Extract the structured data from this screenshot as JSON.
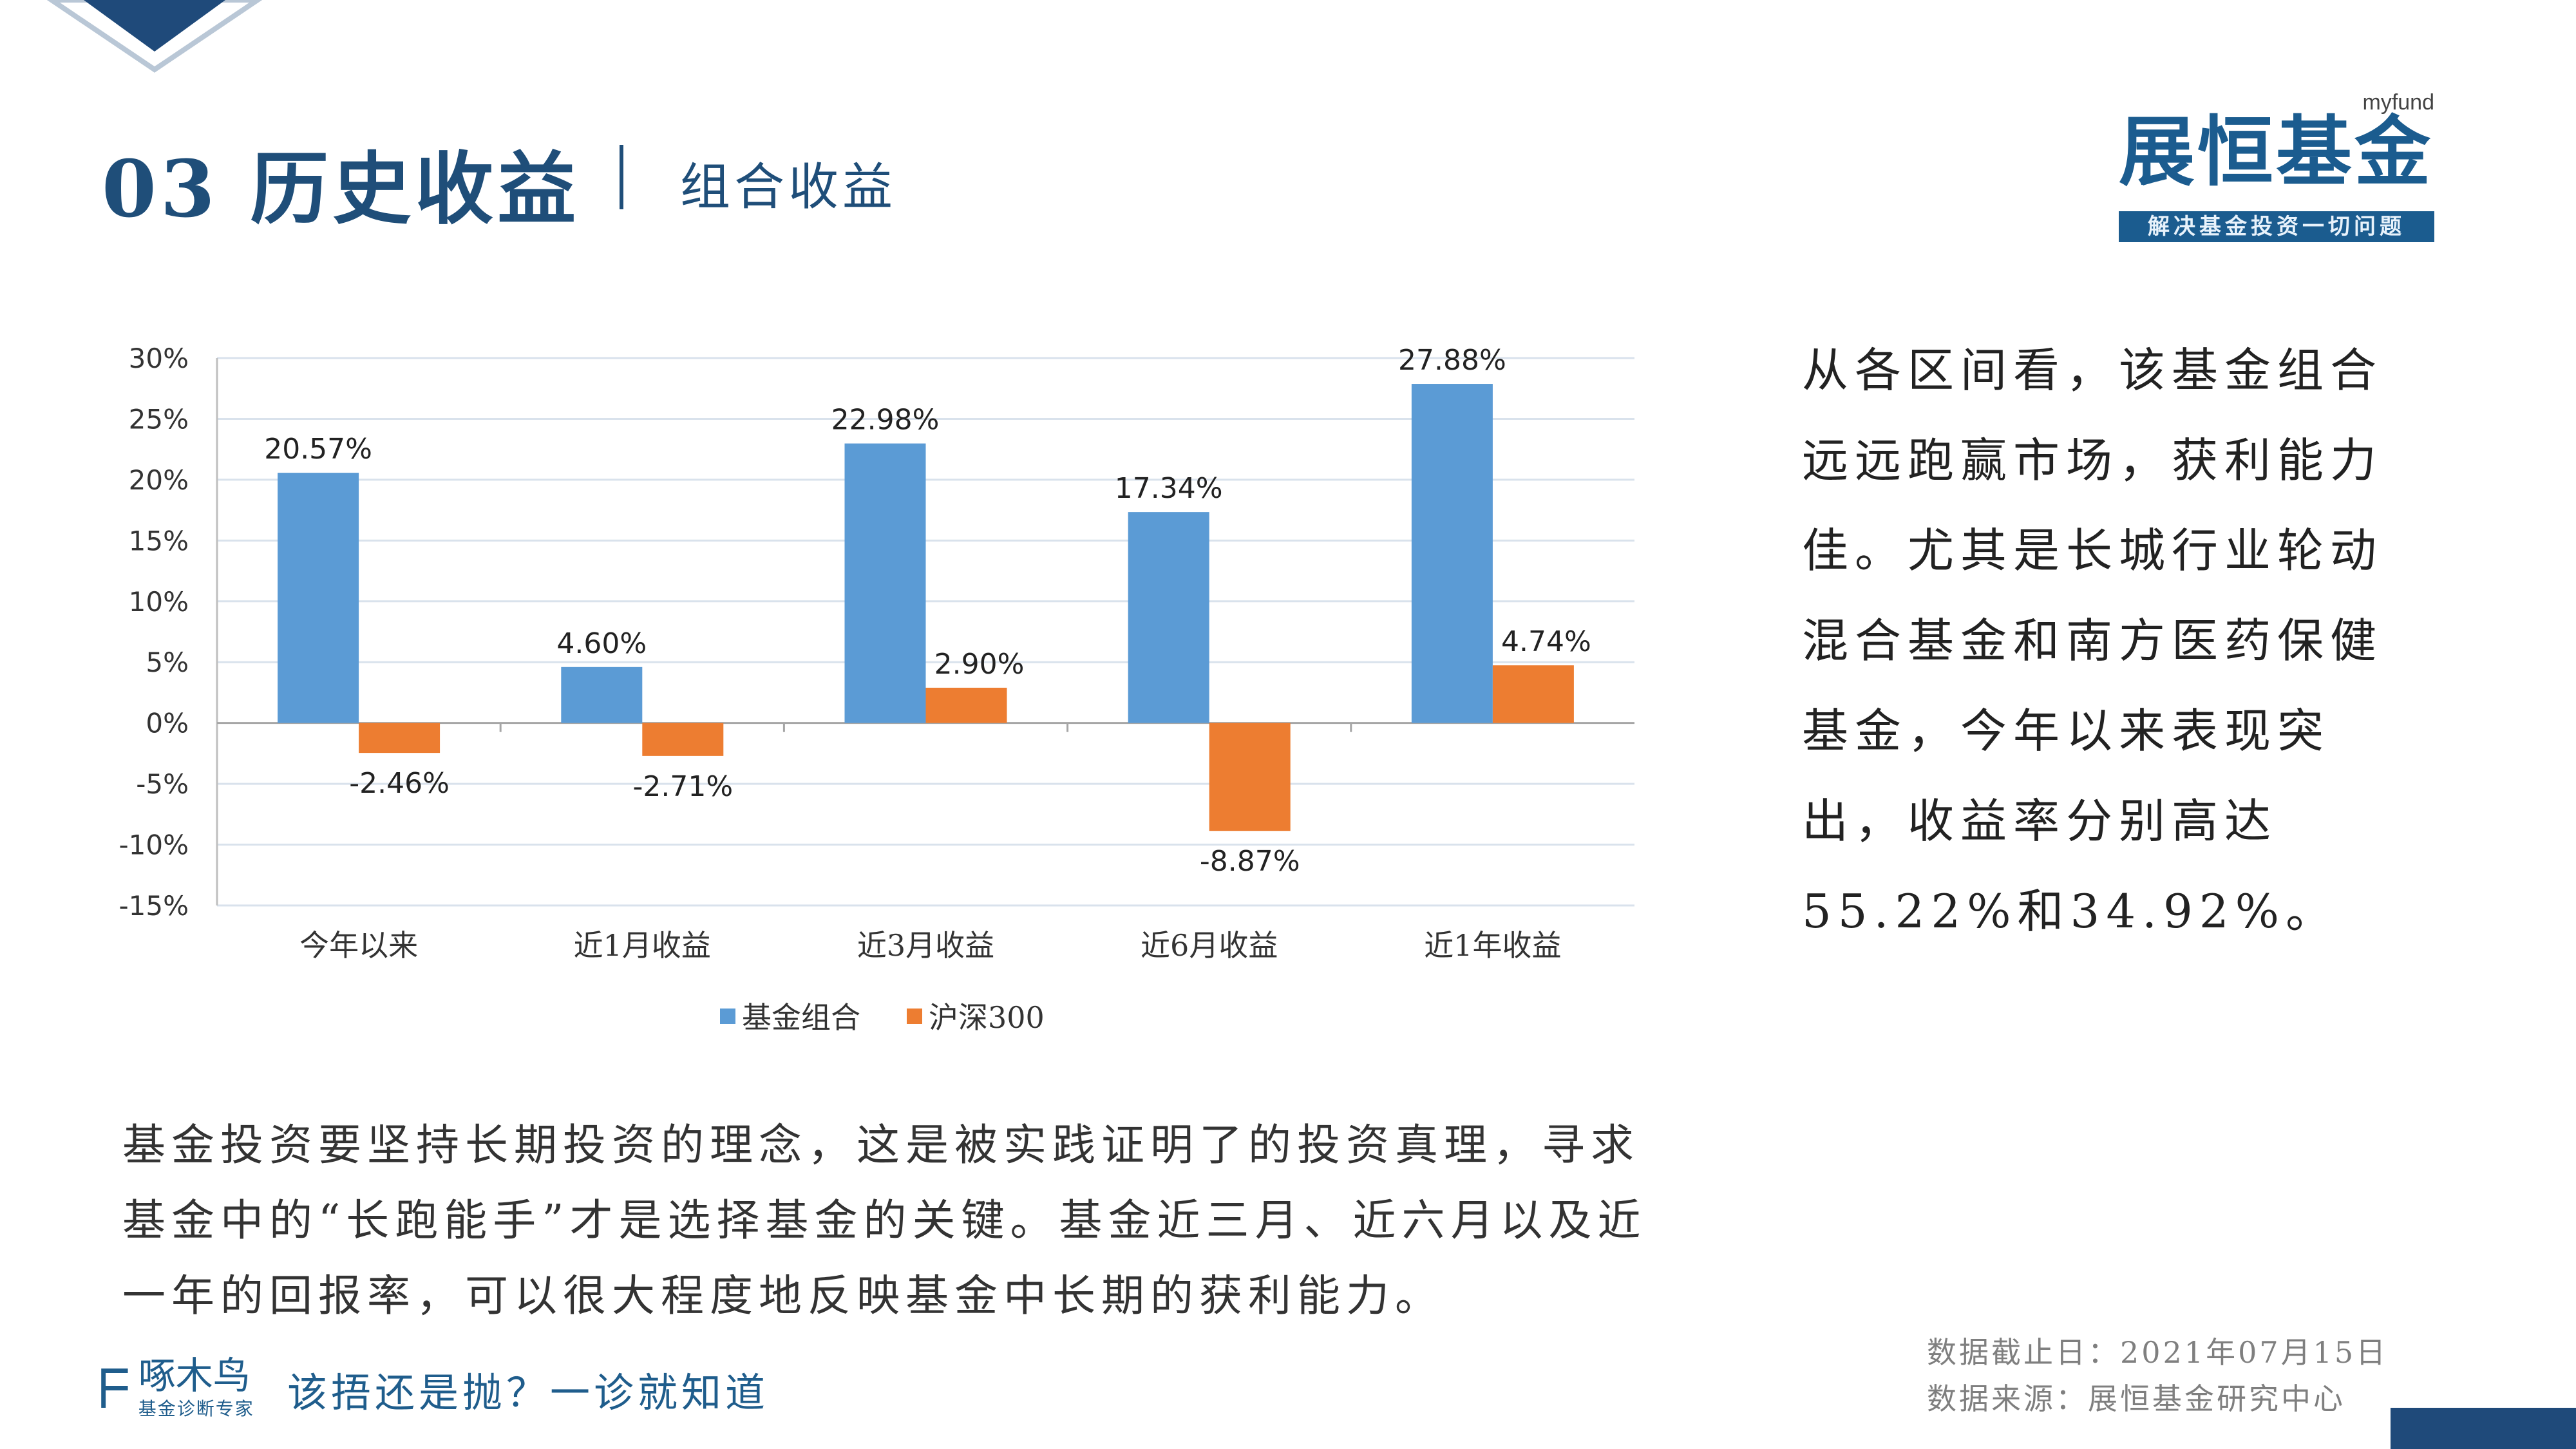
{
  "header": {
    "title": "03 历史收益",
    "subtitle": "组合收益"
  },
  "logo": {
    "tag": "myfund",
    "name": "展恒基金",
    "slogan": "解决基金投资一切问题"
  },
  "chart_data": {
    "type": "bar",
    "categories": [
      "今年以来",
      "近1月收益",
      "近3月收益",
      "近6月收益",
      "近1年收益"
    ],
    "series": [
      {
        "name": "基金组合",
        "color": "#5b9bd5",
        "values": [
          20.57,
          4.6,
          22.98,
          17.34,
          27.88
        ],
        "labels": [
          "20.57%",
          "4.60%",
          "22.98%",
          "17.34%",
          "27.88%"
        ]
      },
      {
        "name": "沪深300",
        "color": "#ed7d31",
        "values": [
          -2.46,
          -2.71,
          2.9,
          -8.87,
          4.74
        ],
        "labels": [
          "-2.46%",
          "-2.71%",
          "2.90%",
          "-8.87%",
          "4.74%"
        ]
      }
    ],
    "ylim": [
      -15,
      30
    ],
    "yticks": [
      "30%",
      "25%",
      "20%",
      "15%",
      "10%",
      "5%",
      "0%",
      "-5%",
      "-10%",
      "-15%"
    ],
    "ytick_values": [
      30,
      25,
      20,
      15,
      10,
      5,
      0,
      -5,
      -10,
      -15
    ],
    "grid": true,
    "legend": "bottom-center"
  },
  "right_text": "从各区间看，该基金组合远远跑赢市场，获利能力佳。尤其是长城行业轮动混合基金和南方医药保健基金，今年以来表现突出，收益率分别高达55.22%和34.92%。",
  "bottom_text": "基金投资要坚持长期投资的理念，这是被实践证明了的投资真理，寻求基金中的“长跑能手”才是选择基金的关键。基金近三月、近六月以及近一年的回报率，可以很大程度地反映基金中长期的获利能力。",
  "footer": {
    "brand": "啄木鸟",
    "brand_sub": "基金诊断专家",
    "slogan": "该捂还是抛？一诊就知道",
    "date_note": "数据截止日：2021年07月15日",
    "source_note": "数据来源：展恒基金研究中心"
  }
}
